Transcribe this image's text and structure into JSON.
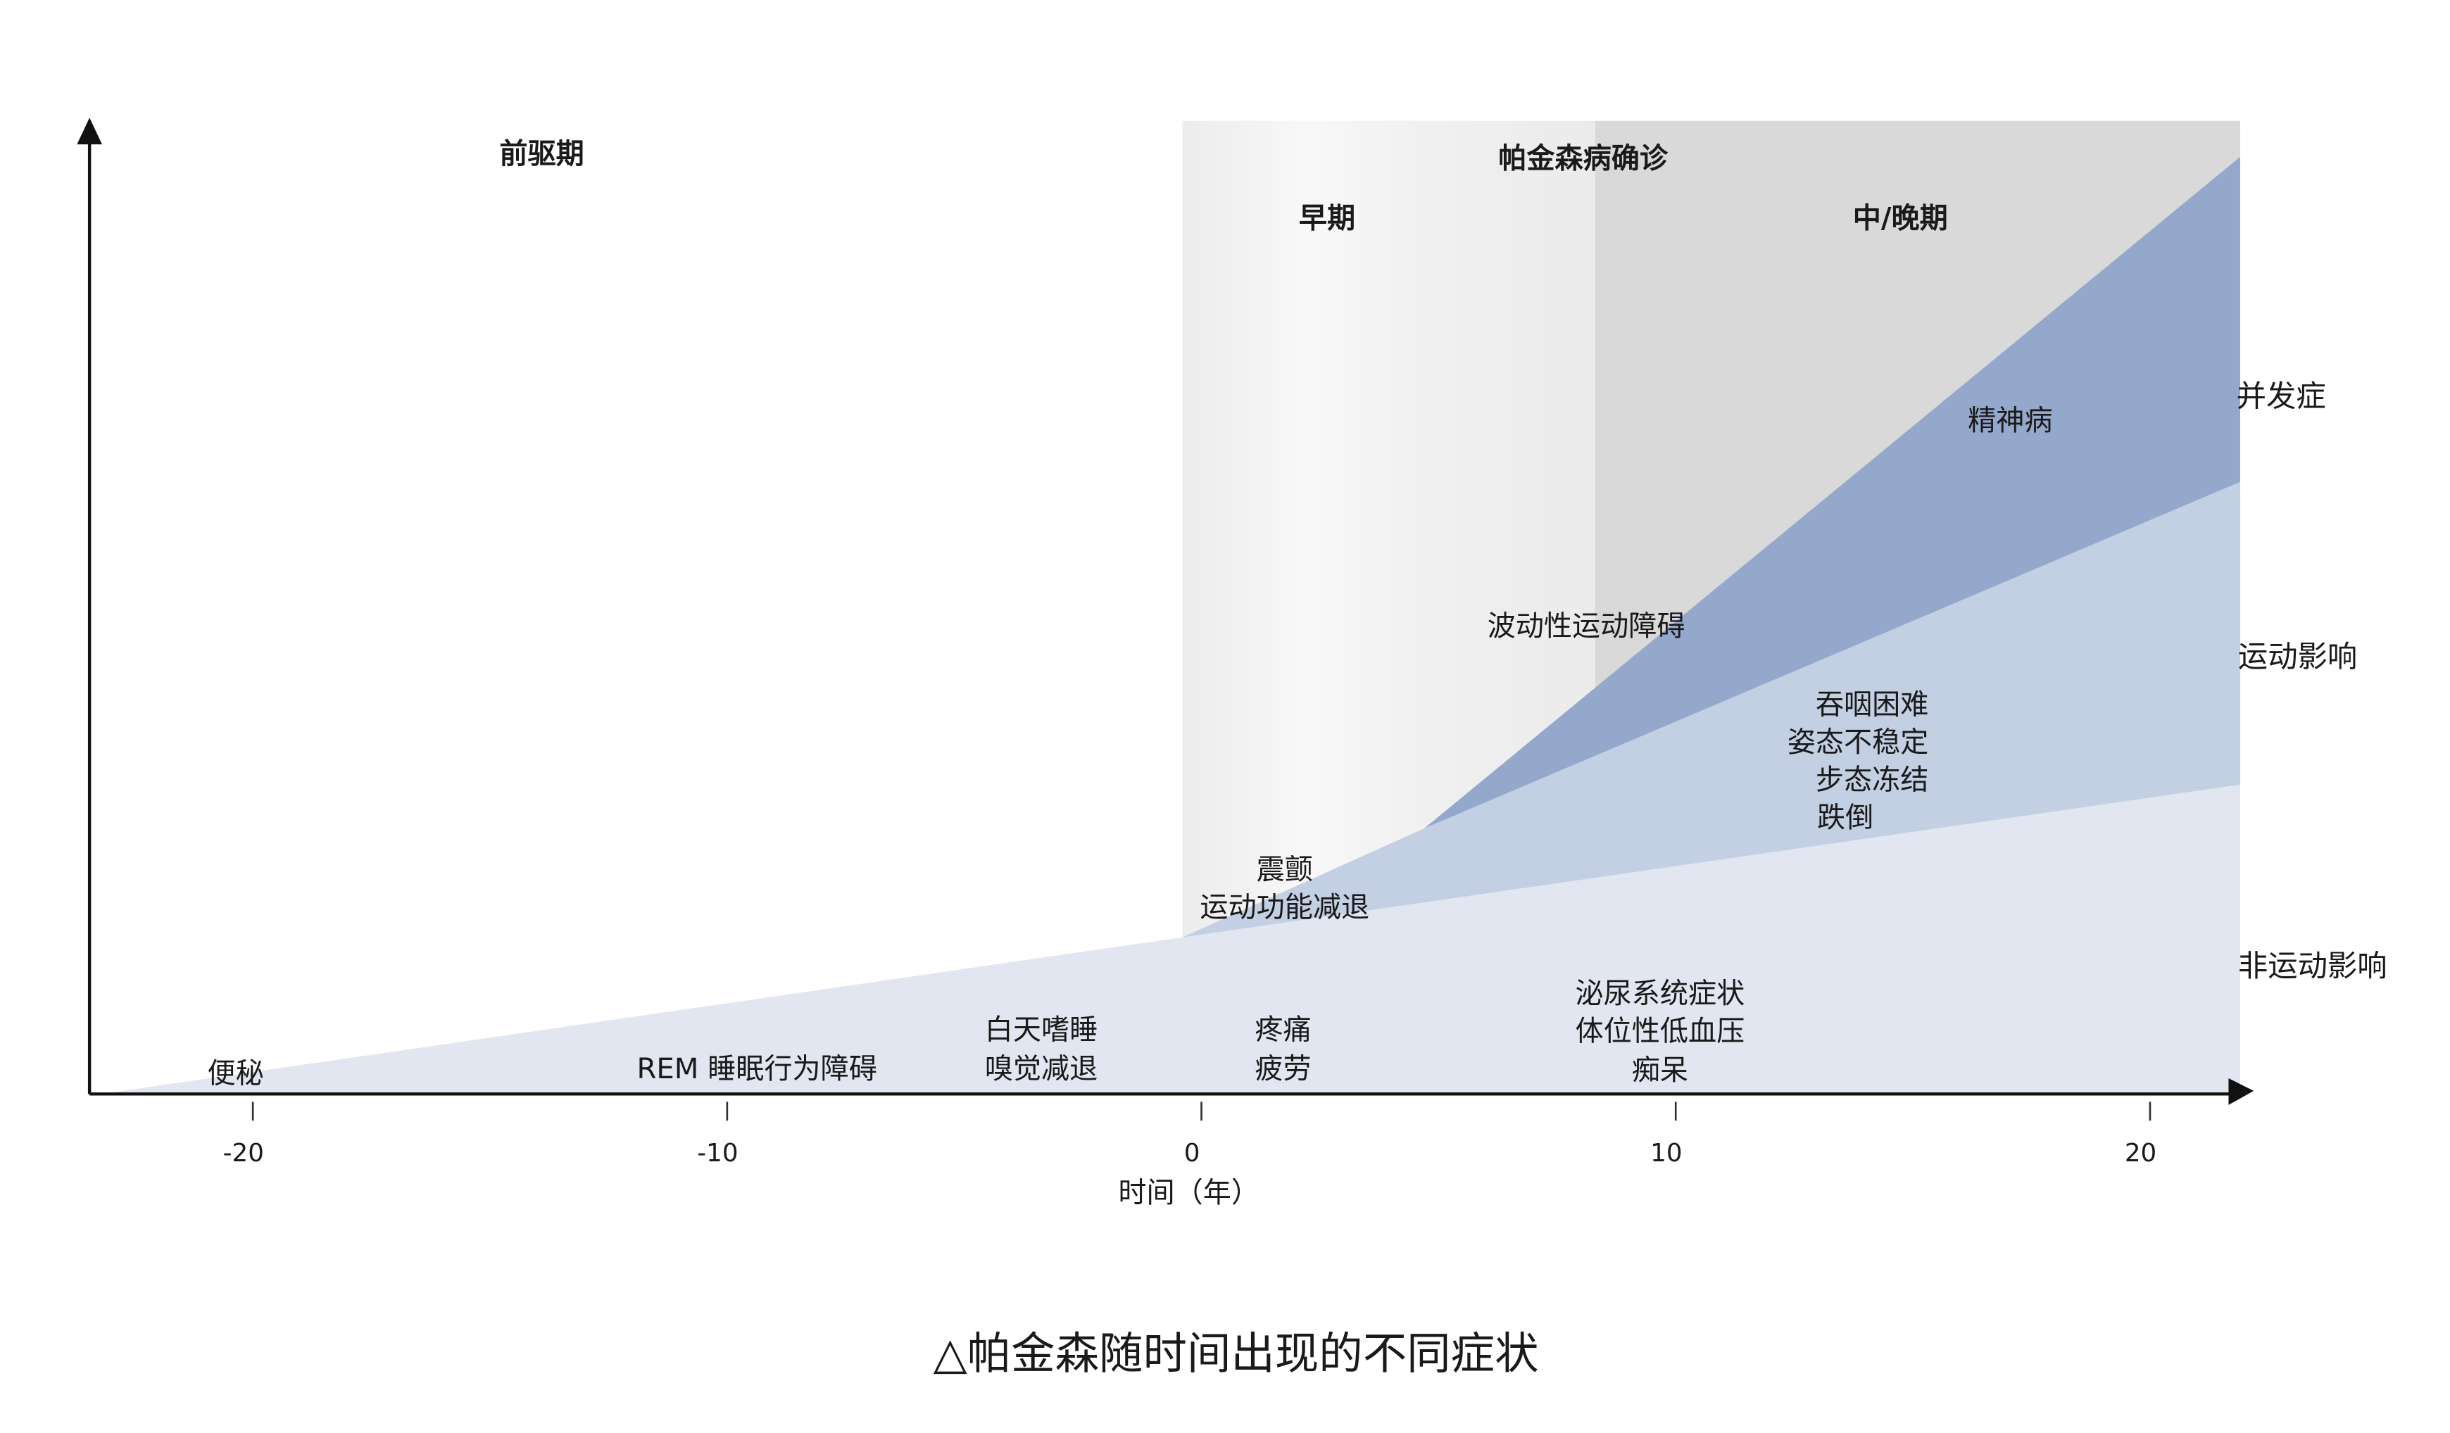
{
  "chart_data": {
    "type": "area",
    "title": "",
    "caption": "△帕金森随时间出现的不同症状",
    "xlabel": "时间（年）",
    "ylabel": "",
    "xlim": [
      -23.2,
      21.9
    ],
    "ylim": [
      0,
      100
    ],
    "x_ticks": [
      "-20",
      "-10",
      "0",
      "10",
      "20"
    ],
    "x_tick_values": [
      -20,
      -10,
      0,
      10,
      20
    ],
    "grid": false,
    "phases": [
      {
        "label": "前驱期",
        "start": -23.2,
        "end": -0.4,
        "color": "#ffffff"
      },
      {
        "label": "早期",
        "start": -0.4,
        "end": 8.3,
        "color": "#f0f0f0"
      },
      {
        "label": "中/晚期",
        "start": 8.3,
        "end": 21.9,
        "color": "#d9d9d9"
      }
    ],
    "diagnosis_label": "帕金森病确诊",
    "series": [
      {
        "name": "非运动影响",
        "color": "#e1e6f1",
        "x": [
          -23.2,
          -0.4,
          21.9
        ],
        "y": [
          0,
          16.1,
          31.8
        ]
      },
      {
        "name": "运动影响",
        "color": "#c3cfe3",
        "x": [
          -0.4,
          4.7,
          21.9
        ],
        "y": [
          16.1,
          27.3,
          62.9
        ]
      },
      {
        "name": "并发症",
        "color": "#93a8cb",
        "x": [
          4.7,
          21.9
        ],
        "y": [
          27.3,
          96.3
        ]
      }
    ],
    "annotations": {
      "psychosis": "精神病",
      "dyskinesia": "波动性运动障碍",
      "motor_late": [
        "吞咽困难",
        "姿态不稳定",
        "步态冻结",
        "跌倒"
      ],
      "motor_early": [
        "震颤",
        "运动功能减退"
      ],
      "constipation": "便秘",
      "rbd": "REM 睡眠行为障碍",
      "prodromal_late": [
        "白天嗜睡",
        "嗅觉减退"
      ],
      "early_nonmotor": [
        "疼痛",
        "疲劳"
      ],
      "late_nonmotor": [
        "泌尿系统症状",
        "体位性低血压",
        "痴呆"
      ]
    }
  }
}
